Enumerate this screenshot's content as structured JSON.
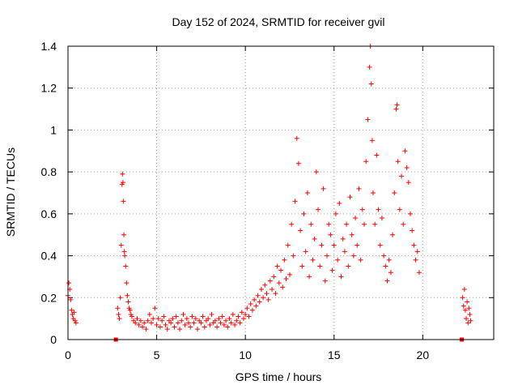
{
  "chart_data": {
    "type": "scatter",
    "title": "Day 152 of 2024, SRMTID for receiver gvil",
    "xlabel": "GPS time / hours",
    "ylabel": "SRMTID / TECUs",
    "xlim": [
      0,
      24
    ],
    "ylim": [
      0,
      1.4
    ],
    "x_ticks": [
      0,
      5,
      10,
      15,
      20
    ],
    "x_tick_labels": [
      "0",
      "5",
      "10",
      "15",
      "20"
    ],
    "y_ticks": [
      0,
      0.2,
      0.4,
      0.6,
      0.8,
      1.0,
      1.2,
      1.4
    ],
    "y_tick_labels": [
      "0",
      "0.2",
      "0.4",
      "0.6",
      "0.8",
      "1",
      "1.2",
      "1.4"
    ],
    "grid": true,
    "marker": "plus",
    "color": "#ff0000",
    "series": [
      {
        "name": "SRMTID",
        "points": [
          [
            0.0,
            0.21
          ],
          [
            0.05,
            0.27
          ],
          [
            0.1,
            0.24
          ],
          [
            0.15,
            0.19
          ],
          [
            0.2,
            0.14
          ],
          [
            0.25,
            0.12
          ],
          [
            0.3,
            0.1
          ],
          [
            0.35,
            0.13
          ],
          [
            0.4,
            0.09
          ],
          [
            0.45,
            0.08
          ],
          [
            2.7,
            0.0
          ],
          [
            2.8,
            0.15
          ],
          [
            2.85,
            0.12
          ],
          [
            2.9,
            0.1
          ],
          [
            2.95,
            0.2
          ],
          [
            3.0,
            0.45
          ],
          [
            3.05,
            0.74
          ],
          [
            3.07,
            0.79
          ],
          [
            3.1,
            0.75
          ],
          [
            3.12,
            0.66
          ],
          [
            3.15,
            0.5
          ],
          [
            3.18,
            0.42
          ],
          [
            3.2,
            0.4
          ],
          [
            3.25,
            0.35
          ],
          [
            3.3,
            0.27
          ],
          [
            3.35,
            0.21
          ],
          [
            3.4,
            0.18
          ],
          [
            3.45,
            0.15
          ],
          [
            3.5,
            0.14
          ],
          [
            3.55,
            0.12
          ],
          [
            3.6,
            0.11
          ],
          [
            3.7,
            0.09
          ],
          [
            3.8,
            0.08
          ],
          [
            3.9,
            0.1
          ],
          [
            4.0,
            0.07
          ],
          [
            4.1,
            0.09
          ],
          [
            4.2,
            0.06
          ],
          [
            4.3,
            0.08
          ],
          [
            4.4,
            0.05
          ],
          [
            4.5,
            0.09
          ],
          [
            4.6,
            0.12
          ],
          [
            4.7,
            0.08
          ],
          [
            4.8,
            0.1
          ],
          [
            4.9,
            0.15
          ],
          [
            5.0,
            0.07
          ],
          [
            5.1,
            0.1
          ],
          [
            5.2,
            0.06
          ],
          [
            5.3,
            0.09
          ],
          [
            5.4,
            0.11
          ],
          [
            5.5,
            0.07
          ],
          [
            5.6,
            0.05
          ],
          [
            5.7,
            0.09
          ],
          [
            5.8,
            0.08
          ],
          [
            5.9,
            0.1
          ],
          [
            6.0,
            0.06
          ],
          [
            6.1,
            0.11
          ],
          [
            6.2,
            0.08
          ],
          [
            6.3,
            0.05
          ],
          [
            6.4,
            0.09
          ],
          [
            6.5,
            0.12
          ],
          [
            6.6,
            0.07
          ],
          [
            6.7,
            0.1
          ],
          [
            6.8,
            0.08
          ],
          [
            6.9,
            0.06
          ],
          [
            7.0,
            0.11
          ],
          [
            7.1,
            0.08
          ],
          [
            7.2,
            0.1
          ],
          [
            7.3,
            0.05
          ],
          [
            7.4,
            0.09
          ],
          [
            7.5,
            0.08
          ],
          [
            7.6,
            0.11
          ],
          [
            7.7,
            0.06
          ],
          [
            7.8,
            0.09
          ],
          [
            7.9,
            0.1
          ],
          [
            8.0,
            0.07
          ],
          [
            8.1,
            0.12
          ],
          [
            8.2,
            0.08
          ],
          [
            8.3,
            0.09
          ],
          [
            8.4,
            0.06
          ],
          [
            8.5,
            0.1
          ],
          [
            8.6,
            0.08
          ],
          [
            8.7,
            0.11
          ],
          [
            8.8,
            0.07
          ],
          [
            8.9,
            0.09
          ],
          [
            9.0,
            0.06
          ],
          [
            9.1,
            0.1
          ],
          [
            9.2,
            0.08
          ],
          [
            9.3,
            0.12
          ],
          [
            9.4,
            0.07
          ],
          [
            9.5,
            0.09
          ],
          [
            9.6,
            0.11
          ],
          [
            9.7,
            0.08
          ],
          [
            9.8,
            0.13
          ],
          [
            9.9,
            0.1
          ],
          [
            10.0,
            0.12
          ],
          [
            10.1,
            0.15
          ],
          [
            10.2,
            0.11
          ],
          [
            10.3,
            0.17
          ],
          [
            10.4,
            0.14
          ],
          [
            10.5,
            0.19
          ],
          [
            10.6,
            0.16
          ],
          [
            10.7,
            0.21
          ],
          [
            10.8,
            0.18
          ],
          [
            10.9,
            0.24
          ],
          [
            11.0,
            0.2
          ],
          [
            11.1,
            0.26
          ],
          [
            11.2,
            0.22
          ],
          [
            11.3,
            0.19
          ],
          [
            11.4,
            0.28
          ],
          [
            11.5,
            0.24
          ],
          [
            11.6,
            0.3
          ],
          [
            11.7,
            0.22
          ],
          [
            11.8,
            0.35
          ],
          [
            11.9,
            0.27
          ],
          [
            12.0,
            0.33
          ],
          [
            12.1,
            0.25
          ],
          [
            12.2,
            0.38
          ],
          [
            12.3,
            0.29
          ],
          [
            12.4,
            0.45
          ],
          [
            12.5,
            0.31
          ],
          [
            12.6,
            0.55
          ],
          [
            12.7,
            0.4
          ],
          [
            12.8,
            0.66
          ],
          [
            12.9,
            0.96
          ],
          [
            13.0,
            0.84
          ],
          [
            13.1,
            0.52
          ],
          [
            13.2,
            0.35
          ],
          [
            13.3,
            0.6
          ],
          [
            13.4,
            0.42
          ],
          [
            13.5,
            0.7
          ],
          [
            13.6,
            0.3
          ],
          [
            13.7,
            0.55
          ],
          [
            13.8,
            0.38
          ],
          [
            13.9,
            0.48
          ],
          [
            14.0,
            0.8
          ],
          [
            14.1,
            0.62
          ],
          [
            14.2,
            0.35
          ],
          [
            14.3,
            0.45
          ],
          [
            14.4,
            0.72
          ],
          [
            14.5,
            0.28
          ],
          [
            14.6,
            0.4
          ],
          [
            14.7,
            0.55
          ],
          [
            14.8,
            0.5
          ],
          [
            14.9,
            0.33
          ],
          [
            15.0,
            0.45
          ],
          [
            15.1,
            0.6
          ],
          [
            15.2,
            0.38
          ],
          [
            15.3,
            0.65
          ],
          [
            15.4,
            0.3
          ],
          [
            15.5,
            0.48
          ],
          [
            15.6,
            0.42
          ],
          [
            15.7,
            0.55
          ],
          [
            15.8,
            0.35
          ],
          [
            15.9,
            0.68
          ],
          [
            16.0,
            0.5
          ],
          [
            16.1,
            0.4
          ],
          [
            16.2,
            0.58
          ],
          [
            16.3,
            0.45
          ],
          [
            16.4,
            0.72
          ],
          [
            16.5,
            0.38
          ],
          [
            16.6,
            0.62
          ],
          [
            16.7,
            0.55
          ],
          [
            16.8,
            0.85
          ],
          [
            16.9,
            1.05
          ],
          [
            17.0,
            1.3
          ],
          [
            17.05,
            1.4
          ],
          [
            17.1,
            1.22
          ],
          [
            17.15,
            0.95
          ],
          [
            17.2,
            0.7
          ],
          [
            17.3,
            0.55
          ],
          [
            17.4,
            0.88
          ],
          [
            17.5,
            0.62
          ],
          [
            17.6,
            0.45
          ],
          [
            17.7,
            0.58
          ],
          [
            17.8,
            0.4
          ],
          [
            17.9,
            0.35
          ],
          [
            18.0,
            0.28
          ],
          [
            18.1,
            0.38
          ],
          [
            18.2,
            0.32
          ],
          [
            18.3,
            0.5
          ],
          [
            18.4,
            0.7
          ],
          [
            18.5,
            1.1
          ],
          [
            18.55,
            1.12
          ],
          [
            18.6,
            0.85
          ],
          [
            18.7,
            0.62
          ],
          [
            18.8,
            0.78
          ],
          [
            18.9,
            0.55
          ],
          [
            19.0,
            0.9
          ],
          [
            19.1,
            0.82
          ],
          [
            19.2,
            0.75
          ],
          [
            19.3,
            0.6
          ],
          [
            19.4,
            0.52
          ],
          [
            19.5,
            0.45
          ],
          [
            19.6,
            0.38
          ],
          [
            19.7,
            0.42
          ],
          [
            19.8,
            0.32
          ],
          [
            22.2,
            0.0
          ],
          [
            22.25,
            0.2
          ],
          [
            22.3,
            0.16
          ],
          [
            22.35,
            0.24
          ],
          [
            22.4,
            0.14
          ],
          [
            22.45,
            0.1
          ],
          [
            22.5,
            0.18
          ],
          [
            22.55,
            0.08
          ],
          [
            22.6,
            0.15
          ],
          [
            22.65,
            0.12
          ],
          [
            22.7,
            0.09
          ]
        ]
      }
    ]
  }
}
